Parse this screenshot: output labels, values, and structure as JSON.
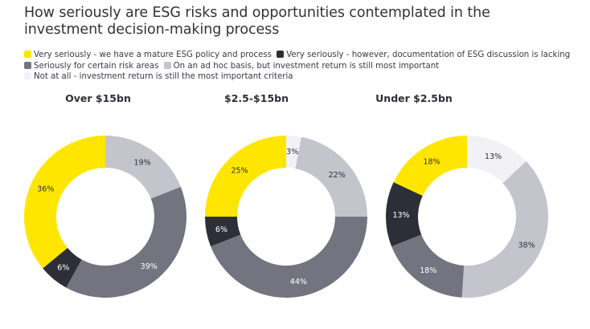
{
  "title": "How seriously are ESG risks and opportunities contemplated in the investment decision-making process",
  "legend": [
    {
      "key": "mature",
      "label": "Very seriously - we have a mature ESG policy and process",
      "color": "#ffe600"
    },
    {
      "key": "lacking",
      "label": "Very seriously - however, documentation of ESG discussion is lacking",
      "color": "#2e2e38"
    },
    {
      "key": "certain",
      "label": "Seriously for certain risk areas",
      "color": "#747480"
    },
    {
      "key": "adhoc",
      "label": "On an ad hoc basis, but investment return is still most important",
      "color": "#c4c4cd"
    },
    {
      "key": "notatall",
      "label": "Not at all - investment return is still the most important criteria",
      "color": "#f2f2f6"
    }
  ],
  "chart_data": {
    "type": "pie",
    "variant": "donut",
    "title": "How seriously are ESG risks and opportunities contemplated in the investment decision-making process",
    "unit": "%",
    "categories": [
      "Not at all - investment return is still the most important criteria",
      "On an ad hoc basis, but investment return is still most important",
      "Seriously for certain risk areas",
      "Very seriously - however, documentation of ESG discussion is lacking",
      "Very seriously - we have a mature ESG policy and process"
    ],
    "category_keys": [
      "notatall",
      "adhoc",
      "certain",
      "lacking",
      "mature"
    ],
    "slice_order": "clockwise from top",
    "legend_position": "top-left",
    "charts": [
      {
        "title": "Over $15bn",
        "values": [
          0,
          19,
          39,
          6,
          36
        ],
        "labels": [
          "",
          "19%",
          "39%",
          "6%",
          "36%"
        ]
      },
      {
        "title": "$2.5-$15bn",
        "values": [
          3,
          22,
          44,
          6,
          25
        ],
        "labels": [
          "3%",
          "22%",
          "44%",
          "6%",
          "25%"
        ]
      },
      {
        "title": "Under $2.5bn",
        "values": [
          13,
          38,
          18,
          13,
          18
        ],
        "labels": [
          "13%",
          "38%",
          "18%",
          "13%",
          "18%"
        ]
      }
    ],
    "label_colors": {
      "notatall": "#2e2e38",
      "adhoc": "#2e2e38",
      "certain": "#ffffff",
      "lacking": "#ffffff",
      "mature": "#2e2e38"
    }
  }
}
